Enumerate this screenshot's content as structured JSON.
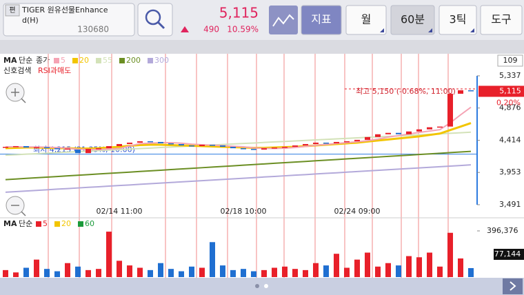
{
  "header": {
    "tab": "편",
    "name": "TIGER 원유선물Enhance",
    "name_suffix": "d(H)",
    "code": "130680",
    "price": "5,115",
    "change": "490",
    "change_pct": "10.59%",
    "buttons": [
      "지표",
      "월",
      "60분",
      "3틱",
      "도구"
    ]
  },
  "price_chart": {
    "legend": {
      "title": "MA",
      "mode": "단순",
      "source": "종가"
    },
    "signal": {
      "title": "신호검색",
      "item": "RSI과매도"
    },
    "badge": "109",
    "ylim": [
      3491,
      5337
    ],
    "yticks": [
      {
        "value": 5337,
        "label": "5,337"
      },
      {
        "value": 4876,
        "label": "4,876"
      },
      {
        "value": 4414,
        "label": "4,414"
      },
      {
        "value": 3953,
        "label": "3,953"
      },
      {
        "value": 3491,
        "label": "3,491"
      }
    ],
    "current": {
      "value": 5115,
      "label": "5,115",
      "pct": "0.20%"
    },
    "high": {
      "value": 5150,
      "label": "최고 5,150 (-0.68%, 11:00)"
    },
    "low": {
      "value": 4215,
      "label": "최저 4,215 (21.35%, 10:00)"
    },
    "categories": [
      null,
      null,
      null,
      null,
      null,
      null,
      null,
      null,
      null,
      null,
      null,
      "02/14 11:00",
      null,
      null,
      null,
      null,
      null,
      null,
      null,
      null,
      null,
      null,
      null,
      "02/18 10:00",
      null,
      null,
      null,
      null,
      null,
      null,
      null,
      null,
      null,
      null,
      "02/24 09:00",
      null,
      null,
      null,
      null,
      null,
      null,
      null,
      null,
      null,
      null,
      null
    ],
    "open": [
      4310,
      4320,
      4330,
      4310,
      4315,
      4300,
      4290,
      4280,
      4230,
      4290,
      4300,
      4330,
      4360,
      4380,
      4400,
      4390,
      4370,
      4360,
      4340,
      4330,
      4350,
      4340,
      4320,
      4300,
      4290,
      4280,
      4300,
      4310,
      4320,
      4340,
      4360,
      4380,
      4370,
      4390,
      4400,
      4420,
      4460,
      4500,
      4520,
      4500,
      4540,
      4570,
      4600,
      4610,
      5080,
      5130
    ],
    "close": [
      4320,
      4330,
      4310,
      4315,
      4300,
      4290,
      4295,
      4230,
      4290,
      4300,
      4330,
      4360,
      4380,
      4400,
      4390,
      4370,
      4360,
      4340,
      4330,
      4350,
      4340,
      4320,
      4300,
      4290,
      4280,
      4300,
      4310,
      4320,
      4340,
      4360,
      4380,
      4370,
      4390,
      4400,
      4420,
      4460,
      4500,
      4520,
      4500,
      4540,
      4570,
      4600,
      4610,
      5080,
      5130,
      5115
    ],
    "colors": {
      "up": "#e8202a",
      "down": "#1f6fd1"
    },
    "series": [
      {
        "name": "5",
        "color": "#f5a3b4",
        "values": [
          4320,
          4322,
          4318,
          4318,
          4315,
          4309,
          4302,
          4286,
          4283,
          4281,
          4289,
          4295,
          4332,
          4366,
          4372,
          4380,
          4380,
          4372,
          4358,
          4350,
          4344,
          4336,
          4328,
          4320,
          4306,
          4298,
          4296,
          4300,
          4310,
          4326,
          4342,
          4354,
          4368,
          4380,
          4392,
          4408,
          4430,
          4460,
          4480,
          4504,
          4526,
          4546,
          4566,
          4664,
          4778,
          4887
        ]
      },
      {
        "name": "20",
        "color": "#f2c500",
        "values": [
          4300,
          4305,
          4310,
          4310,
          4305,
          4300,
          4300,
          4295,
          4295,
          4300,
          4310,
          4320,
          4335,
          4345,
          4350,
          4350,
          4345,
          4340,
          4335,
          4330,
          4325,
          4320,
          4315,
          4310,
          4305,
          4305,
          4310,
          4315,
          4320,
          4330,
          4340,
          4350,
          4360,
          4370,
          4380,
          4395,
          4410,
          4425,
          4440,
          4455,
          4470,
          4490,
          4510,
          4560,
          4610,
          4660
        ]
      },
      {
        "name": "55",
        "color": "#d3e2b8",
        "values": [
          4200,
          4207,
          4215,
          4222,
          4229,
          4237,
          4244,
          4251,
          4258,
          4266,
          4273,
          4280,
          4288,
          4295,
          4302,
          4310,
          4317,
          4324,
          4331,
          4339,
          4346,
          4353,
          4361,
          4368,
          4375,
          4383,
          4390,
          4397,
          4404,
          4412,
          4419,
          4426,
          4434,
          4441,
          4448,
          4456,
          4463,
          4470,
          4477,
          4485,
          4492,
          4499,
          4507,
          4514,
          4521,
          4530
        ]
      },
      {
        "name": "200",
        "color": "#6b8e23",
        "values": [
          3850,
          3859,
          3868,
          3877,
          3886,
          3895,
          3904,
          3913,
          3922,
          3931,
          3940,
          3949,
          3958,
          3967,
          3976,
          3985,
          3994,
          4003,
          4012,
          4021,
          4030,
          4039,
          4048,
          4057,
          4066,
          4075,
          4084,
          4093,
          4102,
          4111,
          4120,
          4129,
          4138,
          4147,
          4156,
          4165,
          4174,
          4183,
          4192,
          4201,
          4210,
          4219,
          4228,
          4237,
          4246,
          4255
        ]
      },
      {
        "name": "300",
        "color": "#b3a9da",
        "values": [
          3670,
          3679,
          3687,
          3696,
          3705,
          3714,
          3722,
          3731,
          3740,
          3748,
          3757,
          3766,
          3774,
          3783,
          3792,
          3801,
          3809,
          3818,
          3827,
          3835,
          3844,
          3853,
          3861,
          3870,
          3879,
          3888,
          3896,
          3905,
          3914,
          3922,
          3931,
          3940,
          3948,
          3957,
          3966,
          3975,
          3983,
          3992,
          4001,
          4009,
          4018,
          4027,
          4035,
          4044,
          4053,
          4062
        ]
      }
    ]
  },
  "volume_chart": {
    "legend": {
      "title": "MA",
      "mode": "단순"
    },
    "series": [
      {
        "name": "5",
        "color": "#e8202a"
      },
      {
        "name": "20",
        "color": "#f2c500"
      },
      {
        "name": "60",
        "color": "#1a9a3a"
      }
    ],
    "ylim": [
      0,
      396376
    ],
    "yticks": [
      {
        "value": 396376,
        "label": "396,376"
      }
    ],
    "values": [
      60000,
      40000,
      80000,
      150000,
      70000,
      50000,
      120000,
      90000,
      60000,
      70000,
      390000,
      140000,
      100000,
      80000,
      60000,
      120000,
      70000,
      50000,
      90000,
      80000,
      300000,
      100000,
      60000,
      70000,
      50000,
      60000,
      80000,
      90000,
      70000,
      60000,
      120000,
      100000,
      200000,
      80000,
      150000,
      210000,
      90000,
      120000,
      100000,
      180000,
      170000,
      210000,
      90000,
      380000,
      160000,
      77144
    ],
    "value_labels": [
      null,
      null,
      null,
      null,
      null,
      null,
      null,
      null,
      null,
      null,
      null,
      null,
      null,
      null,
      null,
      null,
      null,
      null,
      null,
      null,
      null,
      null,
      null,
      null,
      null,
      null,
      null,
      null,
      null,
      null,
      null,
      null,
      null,
      null,
      null,
      null,
      null,
      null,
      null,
      null,
      null,
      null,
      null,
      null,
      null,
      "77,144"
    ]
  }
}
